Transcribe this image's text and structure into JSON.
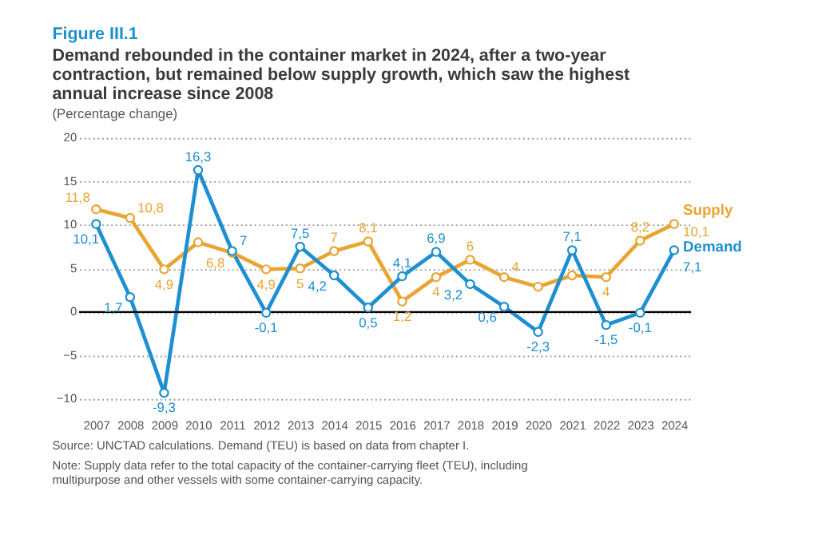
{
  "chart_data": {
    "type": "line",
    "title": "Demand rebounded in the container market in 2024, after a two-year contraction, but remained below supply growth, which saw the highest annual increase since 2008",
    "subtitle": "(Percentage change)",
    "annotations": [
      "Figure III.1",
      "Source: UNCTAD calculations. Demand (TEU) is based on data from chapter I.",
      "Note: Supply data refer to the total capacity of the container-carrying fleet (TEU), including multipurpose and other vessels with some container-carrying capacity."
    ],
    "categories": [
      "2007",
      "2008",
      "2009",
      "2010",
      "2011",
      "2012",
      "2013",
      "2014",
      "2015",
      "2016",
      "2017",
      "2018",
      "2019",
      "2020",
      "2021",
      "2022",
      "2023",
      "2024"
    ],
    "series": [
      {
        "name": "Supply",
        "color": "#e8a533",
        "values": [
          11.8,
          10.8,
          4.9,
          8.0,
          6.8,
          4.9,
          5,
          7,
          8.1,
          1.2,
          4,
          6,
          4,
          2.9,
          4.2,
          4,
          8.2,
          10.1
        ],
        "value_labels": [
          "11,8",
          "10,8",
          "4,9",
          null,
          "6,8",
          "4,9",
          "5",
          "7",
          "8,1",
          "1,2",
          "4",
          "6",
          "4",
          null,
          null,
          "4",
          "8,2",
          "10,1"
        ]
      },
      {
        "name": "Demand",
        "color": "#1e8fd0",
        "values": [
          10.1,
          1.7,
          -9.3,
          16.3,
          7,
          -0.1,
          7.5,
          4.2,
          0.5,
          4.1,
          6.9,
          3.2,
          0.6,
          -2.3,
          7.1,
          -1.5,
          -0.1,
          7.1
        ],
        "value_labels": [
          "10,1",
          "1,7",
          "-9,3",
          "16,3",
          "7",
          "-0,1",
          "7,5",
          "4,2",
          "0,5",
          "4,1",
          "6,9",
          "3,2",
          "0,6",
          "-2,3",
          "7,1",
          "-1,5",
          "-0,1",
          "7,1"
        ]
      }
    ],
    "ylim": [
      -10,
      20
    ],
    "yticks": [
      -10,
      -5,
      0,
      5,
      10,
      15,
      20
    ],
    "ref_lines": [
      {
        "axis": "y",
        "value": 0,
        "color": "#000000"
      }
    ],
    "grid": "y",
    "legend": "right",
    "marker": "circle",
    "line_style": "solid"
  }
}
